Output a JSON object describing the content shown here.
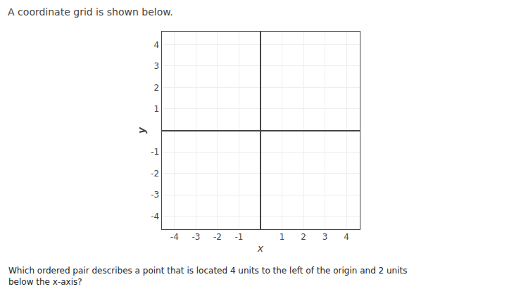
{
  "chart_data": {
    "type": "scatter",
    "title": "A coordinate grid is shown below.",
    "annotations": [
      "Which ordered pair describes a point that is located 4 units to the left of the origin and 2 units\nbelow the x-axis?"
    ],
    "x_label": "x",
    "y_label": "y",
    "xlim": [
      -4.6,
      4.6
    ],
    "ylim": [
      -4.6,
      4.6
    ],
    "xticks": [
      -4,
      -3,
      -2,
      -1,
      1,
      2,
      3,
      4
    ],
    "yticks": [
      -4,
      -3,
      -2,
      -1,
      1,
      2,
      3,
      4
    ],
    "grid": true
  }
}
